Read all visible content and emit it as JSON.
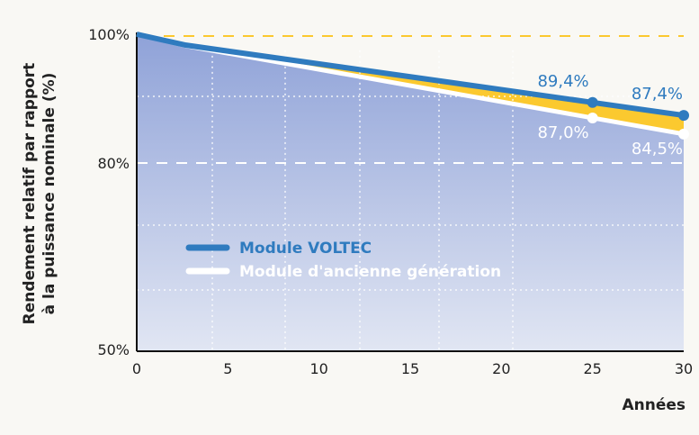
{
  "chart_data": {
    "type": "line",
    "title": "",
    "xlabel": "Années",
    "ylabel_lines": [
      "Rendement relatif par rapport",
      "à la puissance nominale (%)"
    ],
    "xlim": [
      0,
      30
    ],
    "ylim": [
      50,
      100
    ],
    "x_ticks": [
      "0",
      "5",
      "10",
      "15",
      "20",
      "25",
      "30"
    ],
    "y_ticks": [
      {
        "value": 100,
        "label": "100%"
      },
      {
        "value": 80,
        "label": "80%"
      },
      {
        "value": 50,
        "label": "50%"
      }
    ],
    "legend_position": "center-left",
    "series": [
      {
        "name": "Module VOLTEC",
        "color": "#2f7bbf",
        "x": [
          0,
          2.7,
          25,
          30
        ],
        "values": [
          100,
          98.3,
          89.4,
          87.4
        ]
      },
      {
        "name": "Module d'ancienne génération",
        "color": "#ffffff",
        "x": [
          0,
          2.7,
          25,
          30
        ],
        "values": [
          100,
          98.2,
          87.0,
          84.5
        ]
      }
    ],
    "annotations": [
      {
        "series": 0,
        "x": 25,
        "value": 89.4,
        "label": "89,4%"
      },
      {
        "series": 0,
        "x": 30,
        "value": 87.4,
        "label": "87,4%"
      },
      {
        "series": 1,
        "x": 25,
        "value": 87.0,
        "label": "87,0%"
      },
      {
        "series": 1,
        "x": 30,
        "value": 84.5,
        "label": "84,5%"
      }
    ],
    "gap_color": "#fbc92f",
    "fill_colors": [
      "#8fa2d8",
      "#e1e6f3"
    ]
  }
}
